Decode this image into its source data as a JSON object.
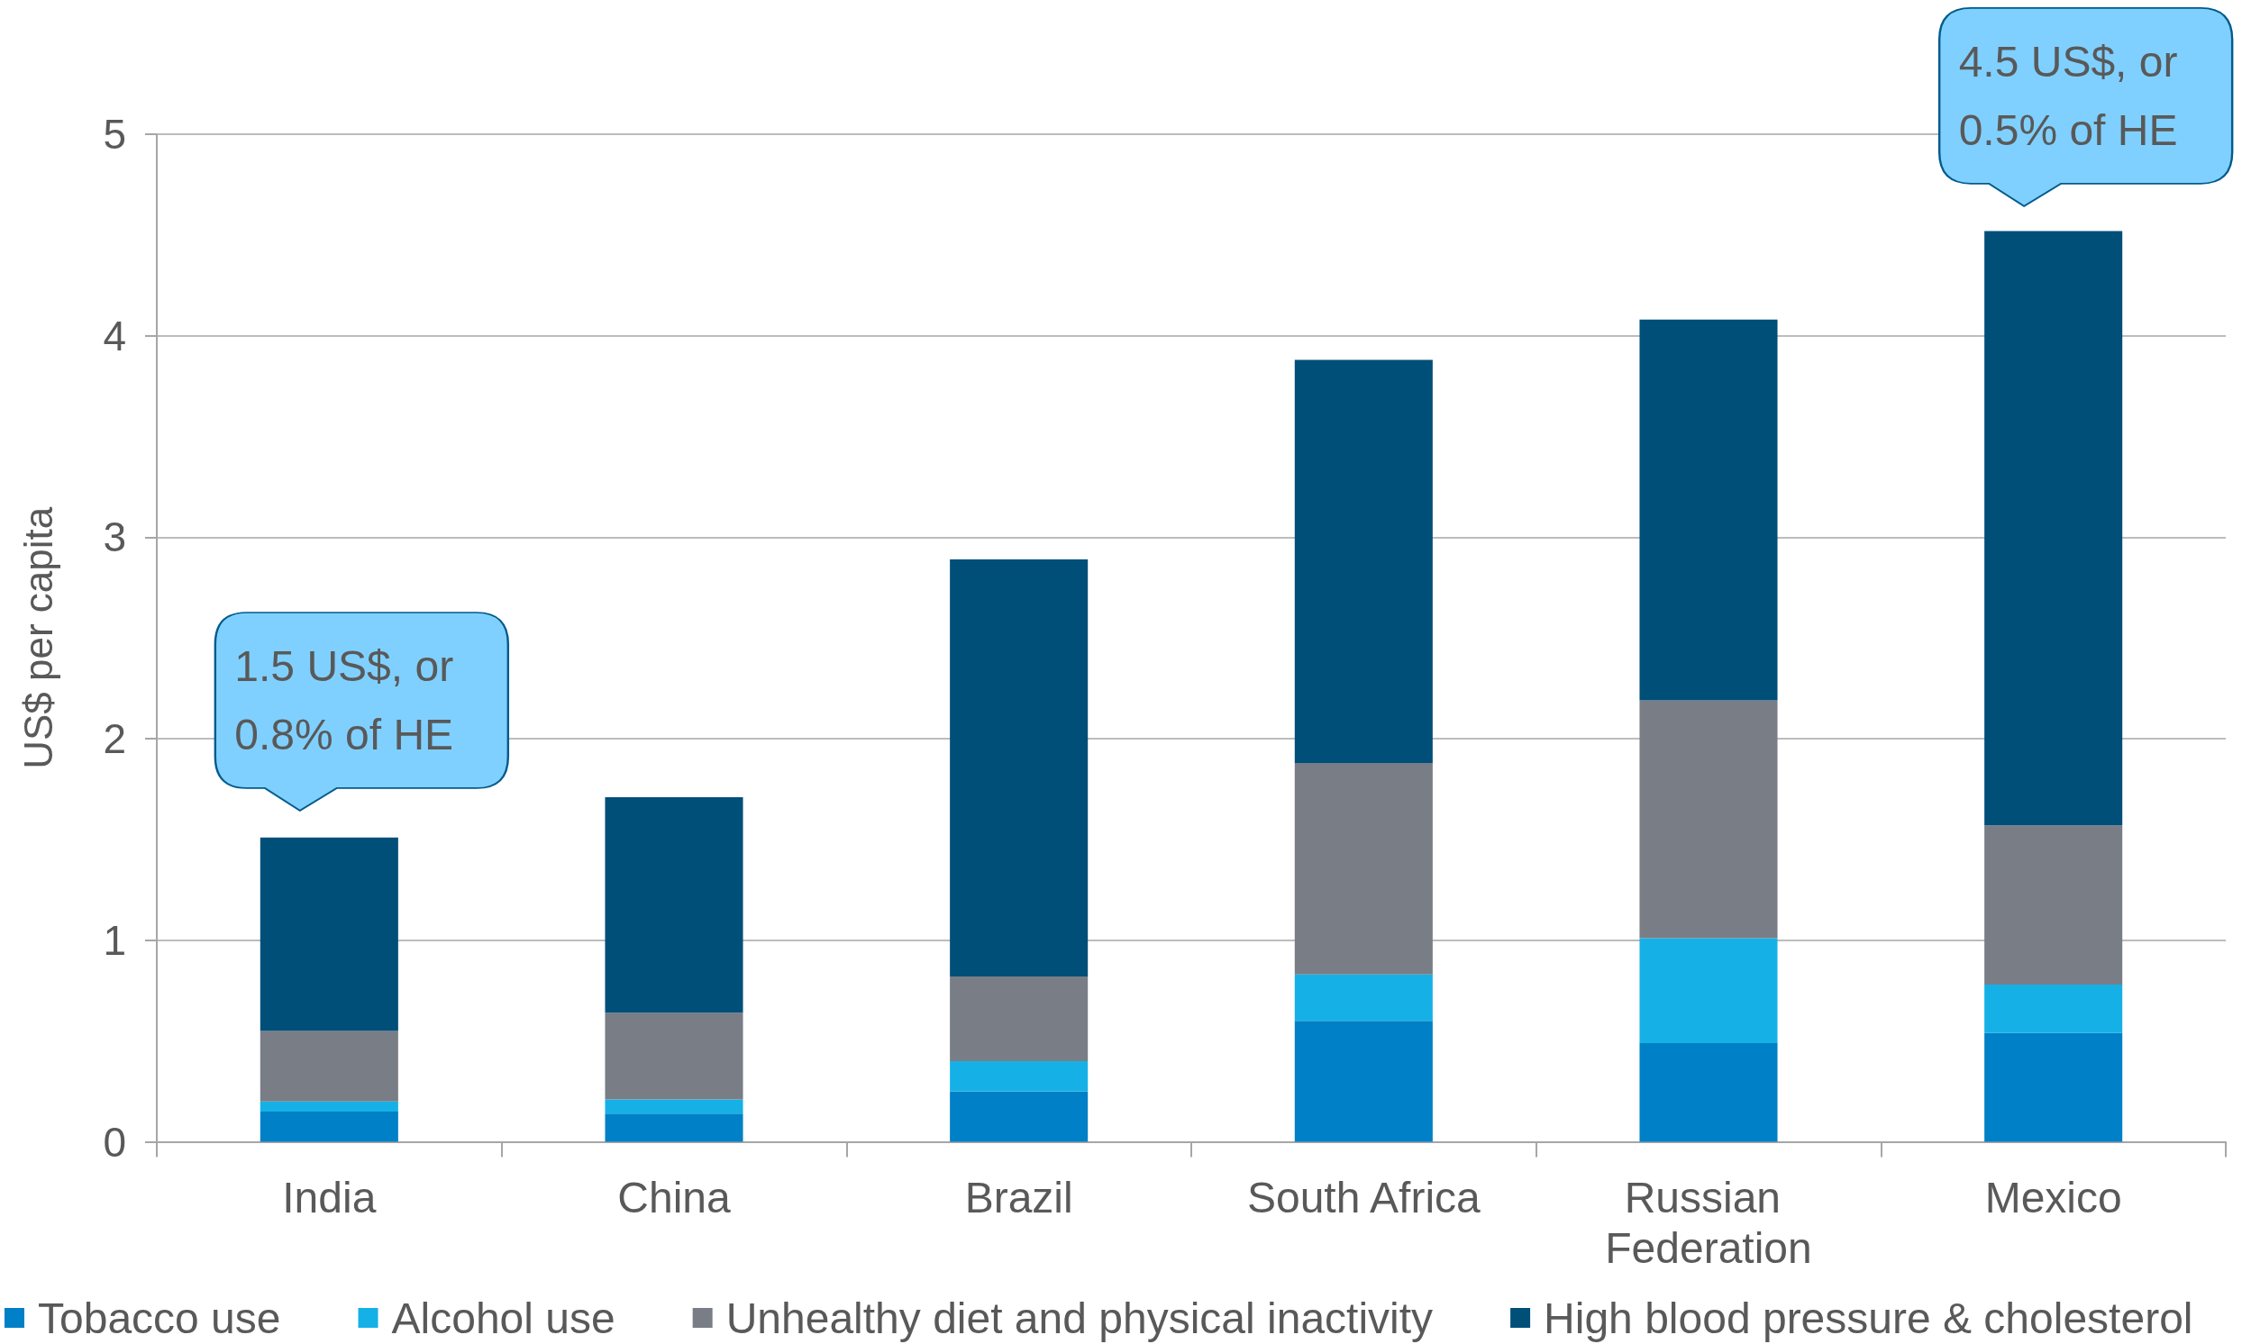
{
  "chart_data": {
    "type": "bar",
    "stacked": true,
    "ylabel": "US$ per capita",
    "categories": [
      "India",
      "China",
      "Brazil",
      "South Africa",
      "Russian Federation",
      "Mexico"
    ],
    "series": [
      {
        "name": "Tobacco use",
        "color": "#0080c6",
        "values": [
          0.15,
          0.14,
          0.25,
          0.6,
          0.49,
          0.54
        ]
      },
      {
        "name": "Alcohol use",
        "color": "#15b1e6",
        "values": [
          0.05,
          0.07,
          0.15,
          0.23,
          0.52,
          0.24
        ]
      },
      {
        "name": "Unhealthy diet and physical inactivity",
        "color": "#797d85",
        "values": [
          0.35,
          0.43,
          0.42,
          1.05,
          1.18,
          0.79
        ]
      },
      {
        "name": "High blood pressure & cholesterol",
        "color": "#004f79",
        "values": [
          0.96,
          1.07,
          2.07,
          2.0,
          1.89,
          2.95
        ]
      }
    ],
    "ylim": [
      0,
      5
    ],
    "yticks": [
      0,
      1,
      2,
      3,
      4,
      5
    ],
    "grid": "y",
    "legend": "bottom",
    "annotations": [
      {
        "text": "1.5 US$, or 0.8% of HE",
        "x": "India",
        "y": 1.5
      },
      {
        "text": "4.5 US$, or 0.5% of HE",
        "x": "Mexico",
        "y": 4.5
      }
    ]
  }
}
